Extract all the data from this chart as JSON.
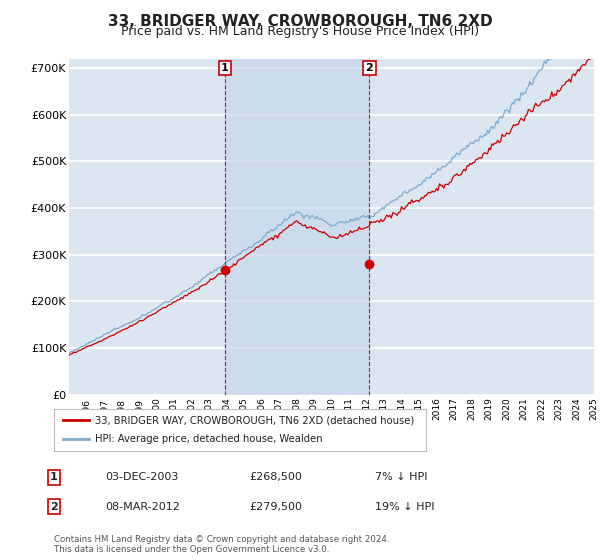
{
  "title": "33, BRIDGER WAY, CROWBOROUGH, TN6 2XD",
  "subtitle": "Price paid vs. HM Land Registry's House Price Index (HPI)",
  "ylim": [
    0,
    720000
  ],
  "yticks": [
    0,
    100000,
    200000,
    300000,
    400000,
    500000,
    600000,
    700000
  ],
  "ytick_labels": [
    "£0",
    "£100K",
    "£200K",
    "£300K",
    "£400K",
    "£500K",
    "£600K",
    "£700K"
  ],
  "background_color": "#dce6f1",
  "shade_color": "#c8d8ea",
  "grid_color": "#ffffff",
  "hpi_color": "#7faacc",
  "price_color": "#cc0000",
  "sale1_label": "1",
  "sale2_label": "2",
  "sale1_date": "03-DEC-2003",
  "sale1_price": "£268,500",
  "sale1_hpi": "7% ↓ HPI",
  "sale2_date": "08-MAR-2012",
  "sale2_price": "£279,500",
  "sale2_hpi": "19% ↓ HPI",
  "legend_line1": "33, BRIDGER WAY, CROWBOROUGH, TN6 2XD (detached house)",
  "legend_line2": "HPI: Average price, detached house, Wealden",
  "footer": "Contains HM Land Registry data © Crown copyright and database right 2024.\nThis data is licensed under the Open Government Licence v3.0.",
  "title_fontsize": 11,
  "subtitle_fontsize": 9
}
